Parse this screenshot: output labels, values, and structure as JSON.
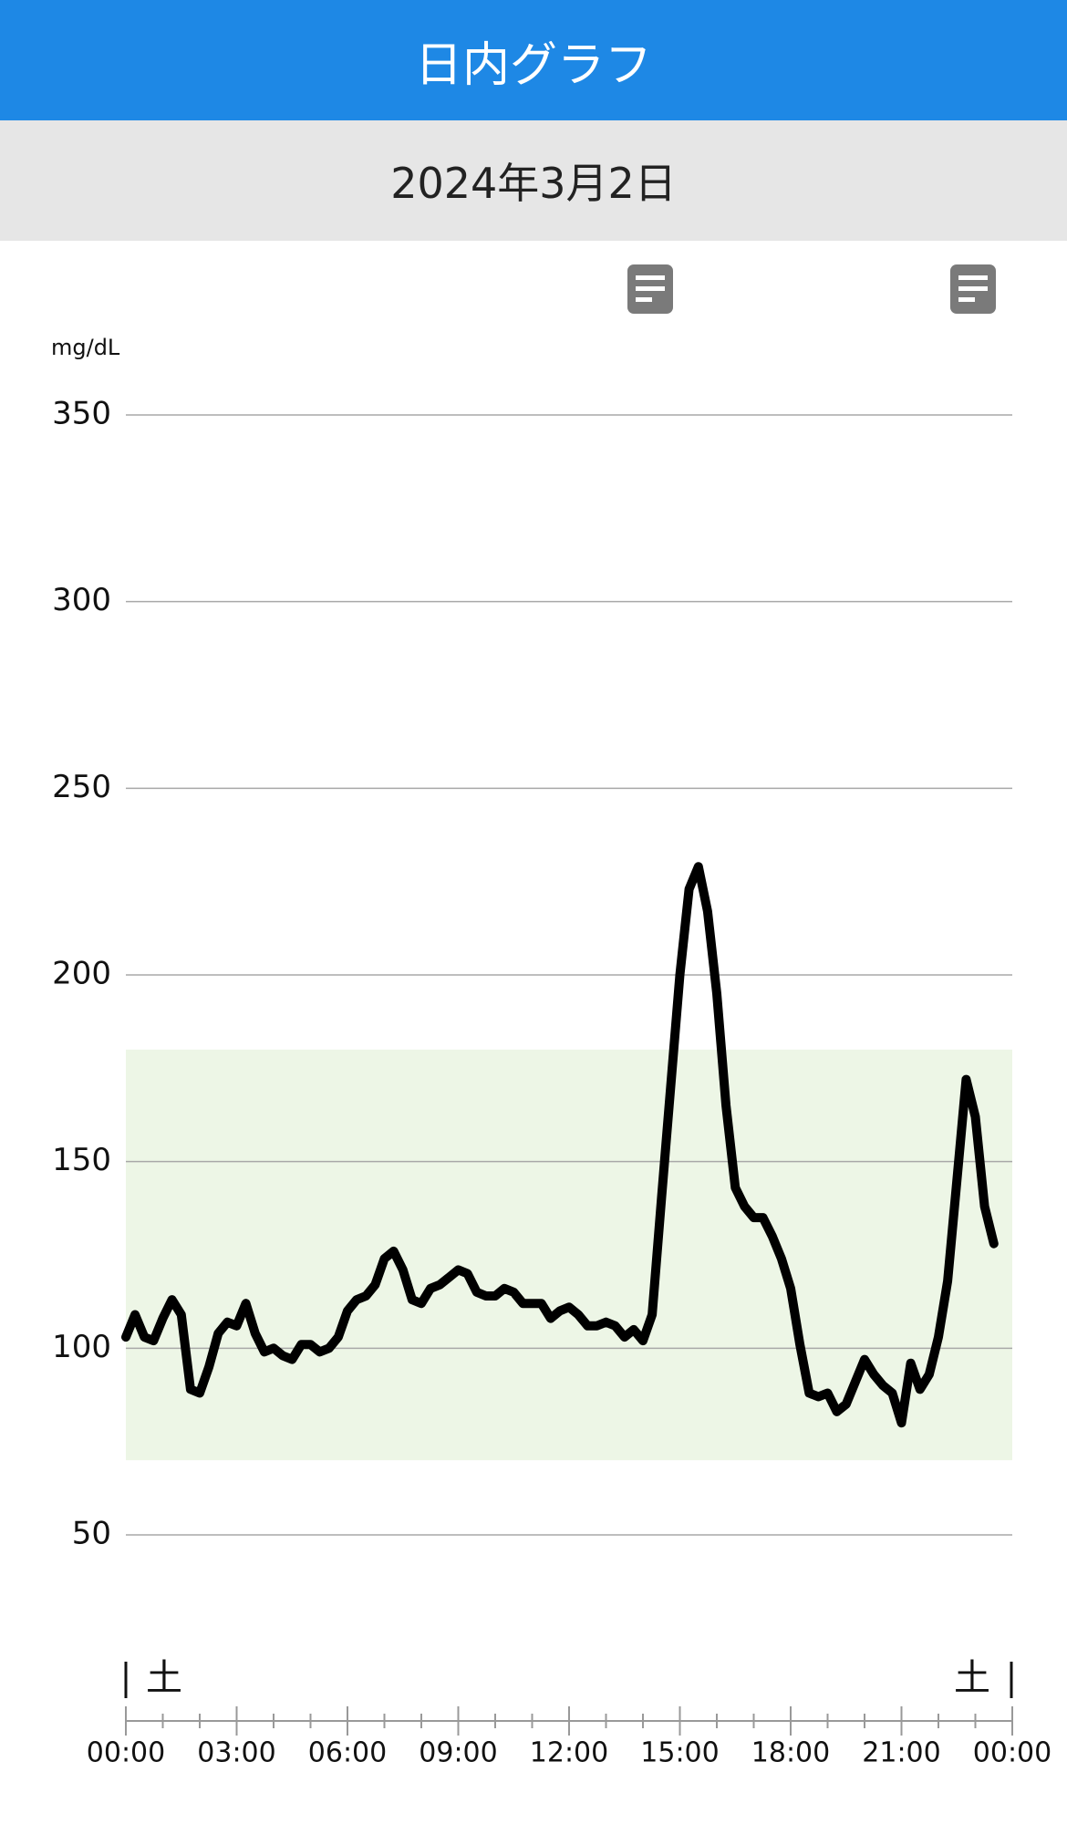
{
  "header": {
    "title": "日内グラフ"
  },
  "date": "2024年3月2日",
  "chart_data": {
    "type": "line",
    "y_label": "mg/dL",
    "ylim": [
      50,
      350
    ],
    "yticks": [
      50,
      100,
      150,
      200,
      250,
      300,
      350
    ],
    "grid": true,
    "xlim": [
      0,
      24
    ],
    "xticks": [
      {
        "value": 0,
        "label": "00:00"
      },
      {
        "value": 3,
        "label": "03:00"
      },
      {
        "value": 6,
        "label": "06:00"
      },
      {
        "value": 9,
        "label": "09:00"
      },
      {
        "value": 12,
        "label": "12:00"
      },
      {
        "value": 15,
        "label": "15:00"
      },
      {
        "value": 18,
        "label": "18:00"
      },
      {
        "value": 21,
        "label": "21:00"
      },
      {
        "value": 24,
        "label": "00:00"
      }
    ],
    "xminorticks": [
      1,
      2,
      4,
      5,
      7,
      8,
      10,
      11,
      13,
      14,
      16,
      17,
      19,
      20,
      22,
      23
    ],
    "weekday_labels": [
      "土",
      "土"
    ],
    "target_range": [
      70,
      180
    ],
    "target_color": "#edf6e6",
    "x": [
      0,
      0.25,
      0.5,
      0.75,
      1,
      1.25,
      1.5,
      1.75,
      2,
      2.25,
      2.5,
      2.75,
      3,
      3.25,
      3.5,
      3.75,
      4,
      4.25,
      4.5,
      4.75,
      5,
      5.25,
      5.5,
      5.75,
      6,
      6.25,
      6.5,
      6.75,
      7,
      7.25,
      7.5,
      7.75,
      8,
      8.25,
      8.5,
      8.75,
      9,
      9.25,
      9.5,
      9.75,
      10,
      10.25,
      10.5,
      10.75,
      11,
      11.25,
      11.5,
      11.75,
      12,
      12.25,
      12.5,
      12.75,
      13,
      13.25,
      13.5,
      13.75,
      14,
      14.25,
      14.5,
      14.75,
      15,
      15.25,
      15.5,
      15.75,
      16,
      16.25,
      16.5,
      16.75,
      17,
      17.25,
      17.5,
      17.75,
      18,
      18.25,
      18.5,
      18.75,
      19,
      19.25,
      19.5,
      19.75,
      20,
      20.25,
      20.5,
      20.75,
      21,
      21.25,
      21.5,
      21.75,
      22,
      22.25,
      22.5,
      22.75,
      23,
      23.25,
      23.5
    ],
    "series": [
      {
        "color": "#000000",
        "values": [
          103,
          109,
          103,
          102,
          108,
          113,
          109,
          89,
          88,
          95,
          104,
          107,
          106,
          112,
          104,
          99,
          100,
          98,
          97,
          101,
          101,
          99,
          100,
          103,
          110,
          113,
          114,
          117,
          124,
          126,
          121,
          113,
          112,
          116,
          117,
          119,
          121,
          120,
          115,
          114,
          114,
          116,
          115,
          112,
          112,
          112,
          108,
          110,
          111,
          109,
          106,
          106,
          107,
          106,
          103,
          105,
          102,
          109,
          140,
          170,
          200,
          223,
          229,
          217,
          195,
          165,
          143,
          138,
          135,
          135,
          130,
          124,
          116,
          101,
          88,
          87,
          88,
          83,
          85,
          91,
          97,
          93,
          90,
          88,
          80,
          96,
          89,
          93,
          103,
          118,
          145,
          172,
          162,
          138,
          128
        ]
      }
    ]
  }
}
